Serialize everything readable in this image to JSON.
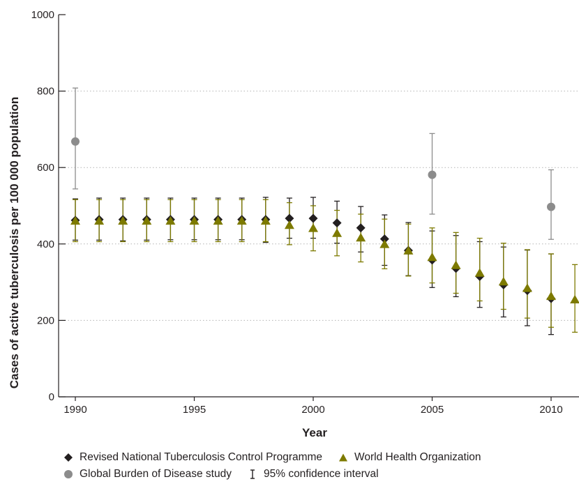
{
  "chart_data": {
    "type": "scatter",
    "title": "",
    "xlabel": "Year",
    "ylabel": "Cases of active tuberculosis per 100 000 population",
    "xlim": [
      1990,
      2011.3
    ],
    "ylim": [
      0,
      1000
    ],
    "xticks": [
      1990,
      1995,
      2000,
      2005,
      2010
    ],
    "yticks": [
      0,
      200,
      400,
      600,
      800,
      1000
    ],
    "gridlines_y": [
      200,
      400,
      600,
      800
    ],
    "grid": "horizontal dotted",
    "legend_placement": "bottom",
    "series": [
      {
        "name": "Revised National Tuberculosis Control Programme",
        "marker": "diamond",
        "color": "#231f20",
        "x": [
          1990,
          1991,
          1992,
          1993,
          1994,
          1995,
          1996,
          1997,
          1998,
          1999,
          2000,
          2001,
          2002,
          2003,
          2004,
          2005,
          2006,
          2007,
          2008,
          2009,
          2010
        ],
        "y": [
          462,
          464,
          464,
          464,
          464,
          464,
          464,
          464,
          464,
          467,
          467,
          455,
          442,
          413,
          383,
          358,
          336,
          315,
          293,
          278,
          257
        ],
        "lower": [
          410,
          410,
          408,
          410,
          411,
          411,
          411,
          411,
          404,
          415,
          415,
          402,
          379,
          344,
          317,
          286,
          262,
          234,
          209,
          186,
          163
        ],
        "upper": [
          518,
          520,
          520,
          520,
          520,
          520,
          520,
          520,
          522,
          520,
          522,
          512,
          498,
          476,
          456,
          434,
          422,
          406,
          392,
          384,
          374
        ]
      },
      {
        "name": "World Health Organization",
        "marker": "triangle",
        "color": "#7d7a00",
        "x": [
          1990,
          1991,
          1992,
          1993,
          1994,
          1995,
          1996,
          1997,
          1998,
          1999,
          2000,
          2001,
          2002,
          2003,
          2004,
          2005,
          2006,
          2007,
          2008,
          2009,
          2010,
          2011
        ],
        "y": [
          460,
          460,
          460,
          460,
          460,
          460,
          460,
          460,
          460,
          449,
          441,
          428,
          416,
          399,
          382,
          365,
          344,
          324,
          301,
          284,
          263,
          254
        ],
        "lower": [
          406,
          406,
          406,
          406,
          406,
          406,
          406,
          406,
          406,
          398,
          382,
          369,
          353,
          335,
          316,
          298,
          271,
          251,
          229,
          206,
          182,
          169
        ],
        "upper": [
          516,
          516,
          516,
          516,
          516,
          516,
          516,
          516,
          516,
          508,
          500,
          488,
          478,
          465,
          452,
          442,
          430,
          415,
          402,
          385,
          374,
          346
        ]
      },
      {
        "name": "Global Burden of Disease study",
        "marker": "circle",
        "color": "#8c8c8c",
        "x": [
          1990,
          2005,
          2010
        ],
        "y": [
          668,
          581,
          497
        ],
        "lower": [
          544,
          478,
          412
        ],
        "upper": [
          808,
          689,
          594
        ]
      }
    ],
    "legend": {
      "rntcp": "Revised National Tuberculosis Control Programme",
      "who": "World Health Organization",
      "gbd": "Global Burden of Disease study",
      "ci": "95% confidence interval"
    }
  }
}
